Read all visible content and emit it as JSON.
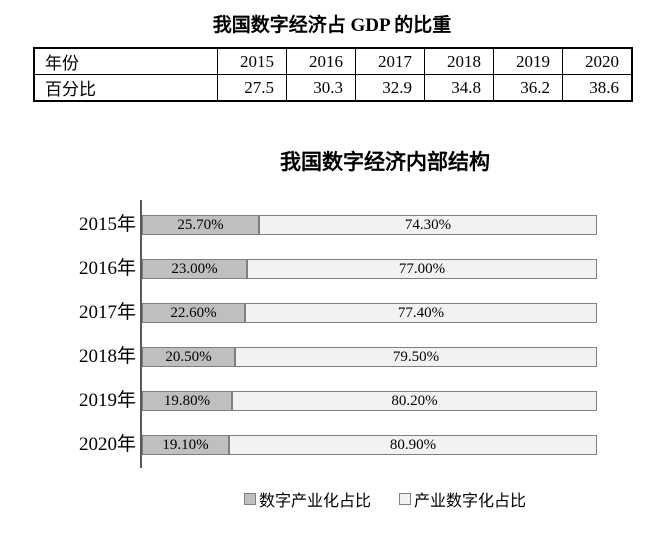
{
  "gdp_table": {
    "title": "我国数字经济占 GDP 的比重",
    "row_labels": [
      "年份",
      "百分比"
    ],
    "years": [
      "2015",
      "2016",
      "2017",
      "2018",
      "2019",
      "2020"
    ],
    "values": [
      "27.5",
      "30.3",
      "32.9",
      "34.8",
      "36.2",
      "38.6"
    ]
  },
  "chart_data": [
    {
      "type": "table",
      "title": "我国数字经济占 GDP 的比重",
      "columns": [
        "年份",
        "2015",
        "2016",
        "2017",
        "2018",
        "2019",
        "2020"
      ],
      "rows": [
        [
          "百分比",
          27.5,
          30.3,
          32.9,
          34.8,
          36.2,
          38.6
        ]
      ],
      "unit": "%"
    },
    {
      "type": "bar",
      "orientation": "horizontal",
      "stacked": true,
      "title": "我国数字经济内部结构",
      "categories": [
        "2015年",
        "2016年",
        "2017年",
        "2018年",
        "2019年",
        "2020年"
      ],
      "series": [
        {
          "name": "数字产业化占比",
          "values": [
            25.7,
            23.0,
            22.6,
            20.5,
            19.8,
            19.1
          ],
          "labels": [
            "25.70%",
            "23.00%",
            "22.60%",
            "20.50%",
            "19.80%",
            "19.10%"
          ],
          "color": "#bfbfbf"
        },
        {
          "name": "产业数字化占比",
          "values": [
            74.3,
            77.0,
            77.4,
            79.5,
            80.2,
            80.9
          ],
          "labels": [
            "74.30%",
            "77.00%",
            "77.40%",
            "79.50%",
            "80.20%",
            "80.90%"
          ],
          "color": "#f2f2f2"
        }
      ],
      "xlim": [
        0,
        100
      ],
      "grid": false,
      "legend_position": "bottom",
      "legend": [
        "数字产业化占比",
        "产业数字化占比"
      ]
    }
  ],
  "colors": {
    "bar_dark_fill": "#bfbfbf",
    "bar_light_fill": "#f2f2f2",
    "bar_border": "#7f7f7f",
    "axis_line": "#595959",
    "table_border": "#000000",
    "text": "#000000",
    "background": "#ffffff"
  }
}
